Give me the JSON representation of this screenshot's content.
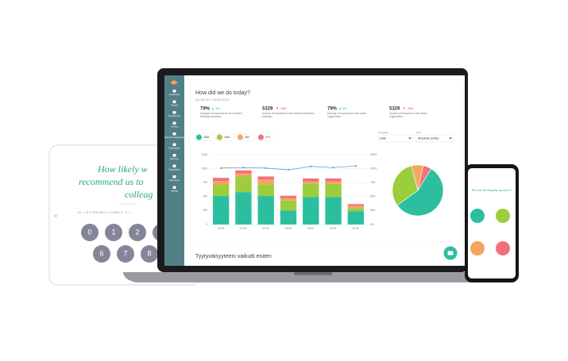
{
  "sidebar": {
    "items": [
      "Dashboard",
      "Results",
      "Feedback list",
      "Surveys",
      "Channel management",
      "Notifications",
      "Reporting",
      "Organization",
      "Help center",
      "Settings"
    ]
  },
  "header": {
    "title": "How did we do today?",
    "date": "(31.08.2017–06.09.2017)"
  },
  "kpis": [
    {
      "value": "79%",
      "change": "▲ 3%",
      "description": "Average of responses in the selected feedback channels"
    },
    {
      "value": "5329",
      "change": "▼ -380",
      "description": "Amount of responses in the selected feedback channels"
    },
    {
      "value": "79%",
      "change": "▲ 3%",
      "description": "Average of responses in the whole organization"
    },
    {
      "value": "5329",
      "change": "▼ -380",
      "description": "Amount of responses in the whole organization"
    }
  ],
  "filters": {
    "grouping_label": "Grouping",
    "grouping": "Date",
    "unit_label": "Unit",
    "unit": "Absolute (units)"
  },
  "section_title": "Tyytyväisyyteeni vaikutti eniten",
  "chart_data": [
    {
      "type": "bar",
      "stacked": true,
      "grid": true,
      "categories": [
        "31.08.",
        "01.09.",
        "02.09.",
        "03.09.",
        "04.09.",
        "05.09.",
        "06.09."
      ],
      "series": [
        {
          "color": "#2bbf9f",
          "values": [
            510,
            580,
            510,
            250,
            490,
            490,
            240
          ]
        },
        {
          "color": "#9ccd3e",
          "values": [
            200,
            280,
            210,
            180,
            240,
            240,
            55
          ]
        },
        {
          "color": "#f5a462",
          "values": [
            70,
            55,
            85,
            40,
            40,
            40,
            40
          ]
        },
        {
          "color": "#f2707c",
          "values": [
            55,
            55,
            55,
            45,
            55,
            55,
            30
          ]
        },
        {
          "type": "line",
          "axis": "y2",
          "color": "#4a90c8",
          "values": [
            101,
            102,
            101,
            98,
            104,
            102,
            105
          ]
        }
      ],
      "ylim": [
        0,
        1250
      ],
      "yticks": [
        0,
        250,
        500,
        750,
        1000,
        1250
      ],
      "y2lim": [
        0,
        125
      ],
      "y2ticks": [
        {
          "value": 0,
          "label": "0%"
        },
        {
          "value": 25,
          "label": "25%"
        },
        {
          "value": 50,
          "label": "50%"
        },
        {
          "value": 75,
          "label": "75%"
        },
        {
          "value": 100,
          "label": "100%"
        },
        {
          "value": 125,
          "label": "125%"
        }
      ]
    },
    {
      "type": "pie",
      "values": [
        2881,
        1581,
        380,
        274
      ],
      "colors": [
        "#2bbf9f",
        "#9ccd3e",
        "#f5a462",
        "#f2707c"
      ]
    }
  ],
  "survey": {
    "title": [
      "How likely w",
      "recommend us to",
      "colleag"
    ],
    "scale": "10 = EXTREMELY LIKELY, 0 =",
    "buttons": [
      "0",
      "1",
      "2",
      "6",
      "7",
      "8"
    ]
  },
  "phone": {
    "title": "How was the shopping experience?"
  }
}
